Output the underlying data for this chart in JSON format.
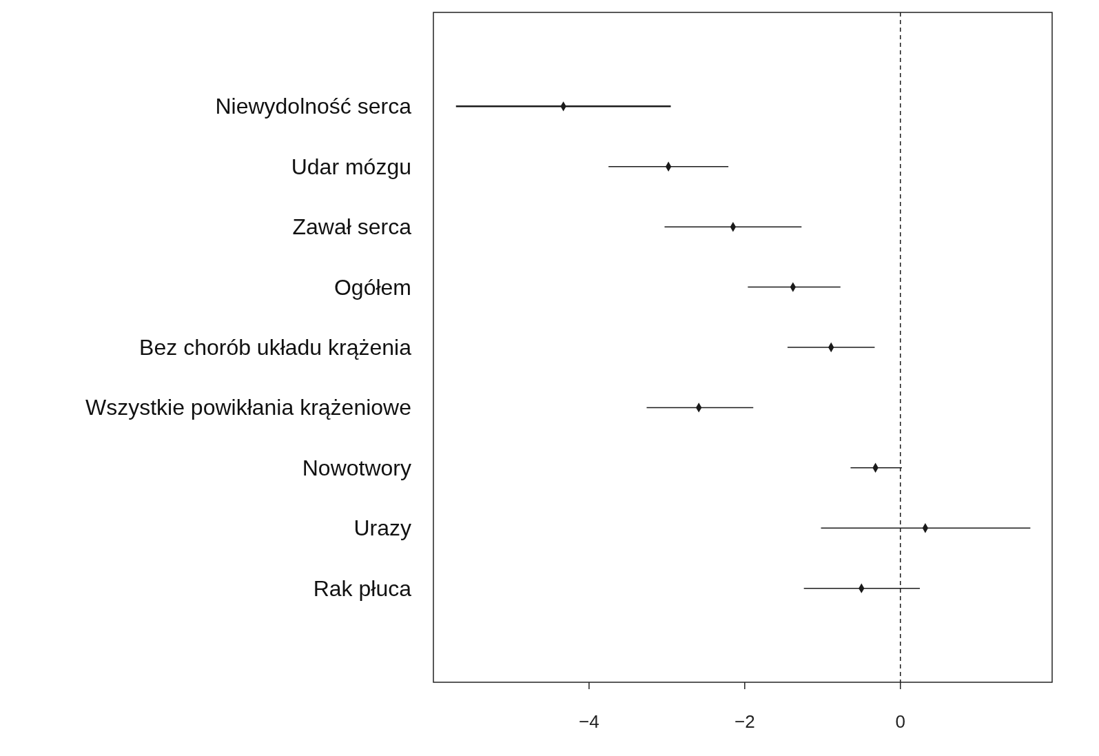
{
  "chart_data": {
    "type": "scatter",
    "orientation": "horizontal",
    "categories": [
      "Niewydolność serca",
      "Udar mózgu",
      "Zawał serca",
      "Ogółem",
      "Bez chorób układu krążenia",
      "Wszystkie powikłania krążeniowe",
      "Nowotwory",
      "Urazy",
      "Rak płuca"
    ],
    "values": [
      -4.33,
      -2.98,
      -2.15,
      -1.38,
      -0.89,
      -2.59,
      -0.32,
      0.32,
      -0.5
    ],
    "errors": [
      [
        -5.71,
        -2.95
      ],
      [
        -3.75,
        -2.21
      ],
      [
        -3.03,
        -1.27
      ],
      [
        -1.96,
        -0.77
      ],
      [
        -1.45,
        -0.33
      ],
      [
        -3.26,
        -1.89
      ],
      [
        -0.64,
        0.02
      ],
      [
        -1.02,
        1.67
      ],
      [
        -1.24,
        0.25
      ]
    ],
    "color": "#1a1a1a",
    "marker": "diamond",
    "xlim": [
      -6,
      1.95
    ],
    "xticks": [
      {
        "value": -4,
        "label": "−4"
      },
      {
        "value": -2,
        "label": "−2"
      },
      {
        "value": 0,
        "label": "0"
      }
    ],
    "ref_lines": [
      {
        "axis": "x",
        "value": 0,
        "line_style": "dashed",
        "color": "#1a1a1a"
      }
    ],
    "grid": false
  }
}
